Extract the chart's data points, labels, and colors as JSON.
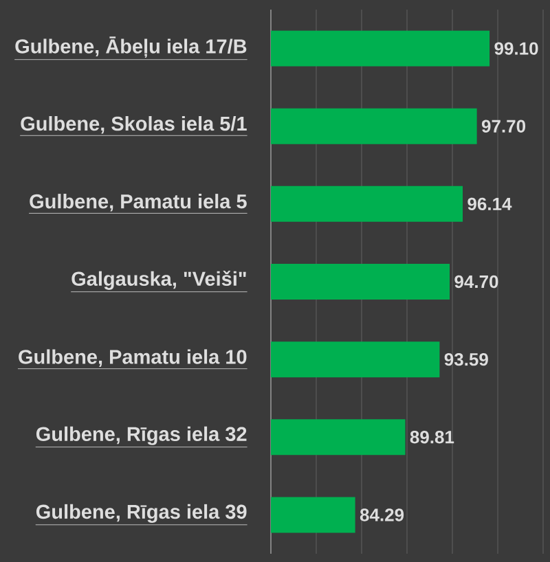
{
  "chart_data": {
    "type": "bar",
    "orientation": "horizontal",
    "categories": [
      "Gulbene, Ābeļu iela 17/B",
      "Gulbene, Skolas iela 5/1",
      "Gulbene, Pamatu iela 5",
      "Galgauska, \"Veiši\"",
      "Gulbene, Pamatu iela 10",
      "Gulbene, Rīgas iela 32",
      "Gulbene, Rīgas iela 39"
    ],
    "values": [
      99.1,
      97.7,
      96.14,
      94.7,
      93.59,
      89.81,
      84.29
    ],
    "value_labels": [
      "99.10",
      "97.70",
      "96.14",
      "94.70",
      "93.59",
      "89.81",
      "84.29"
    ],
    "color": "#00b050",
    "xlim": [
      75,
      105
    ],
    "xticks": [
      {
        "value": 75,
        "label": null
      },
      {
        "value": 80,
        "label": null
      },
      {
        "value": 85,
        "label": null
      },
      {
        "value": 90,
        "label": null
      },
      {
        "value": 95,
        "label": null
      },
      {
        "value": 100,
        "label": null
      },
      {
        "value": 105,
        "label": null
      }
    ],
    "grid": "x",
    "tick_labels": "y"
  }
}
